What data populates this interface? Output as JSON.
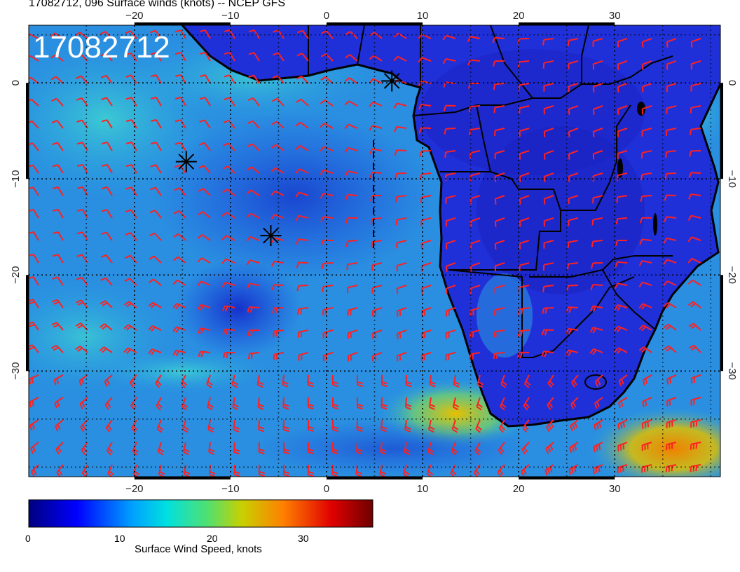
{
  "header": {
    "title": "17082712, 096 Surface winds (knots) -- NCEP GFS"
  },
  "map": {
    "timestamp": "17082712",
    "lon_range": [
      -31,
      41
    ],
    "lat_range": [
      -41,
      6
    ],
    "lon_ticks": [
      -20,
      -10,
      0,
      10,
      20,
      30
    ],
    "lat_ticks": [
      0,
      -10,
      -20,
      -30
    ],
    "lon_tick_labels": [
      "−20",
      "−10",
      "0",
      "10",
      "20",
      "30"
    ],
    "lat_tick_labels": [
      "0",
      "−10",
      "−20",
      "−30"
    ],
    "markers": [
      {
        "name": "asterisk-marker-1",
        "lon": 6.8,
        "lat": 0.2
      },
      {
        "name": "asterisk-marker-2",
        "lon": -14.6,
        "lat": -8.2
      },
      {
        "name": "asterisk-marker-3",
        "lon": -5.8,
        "lat": -15.9
      }
    ],
    "colors": {
      "barbs": "#ff2020",
      "coast": "#000000",
      "ocean_low": "#1a3ae0",
      "ocean_mid": "#2aa6e0"
    }
  },
  "colorbar": {
    "title": "Surface Wind Speed, knots",
    "ticks": [
      0,
      10,
      20,
      30
    ],
    "tick_labels": [
      "0",
      "10",
      "20",
      "30"
    ],
    "range": [
      0,
      38
    ],
    "colors": [
      "#000080",
      "#0000ff",
      "#00a0ff",
      "#00e0e0",
      "#50e070",
      "#c8d000",
      "#ff8000",
      "#e00000",
      "#700000"
    ]
  }
}
